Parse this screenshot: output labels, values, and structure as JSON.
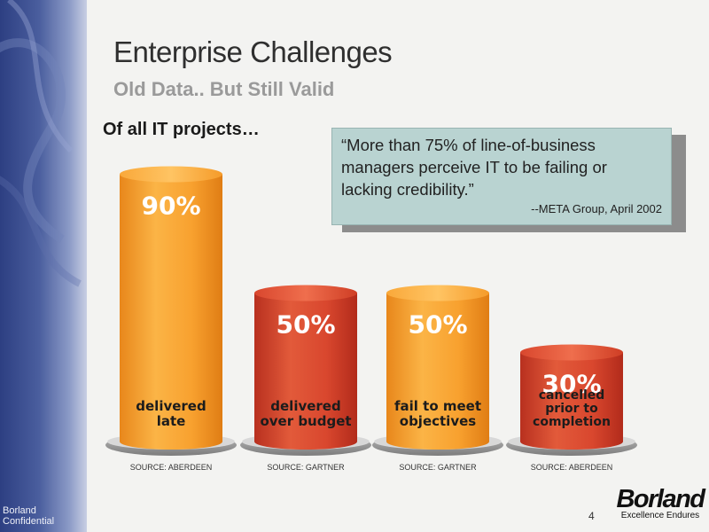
{
  "slide": {
    "title": "Enterprise Challenges",
    "subtitle": "Old Data.. But Still Valid",
    "lead": "Of all IT projects…",
    "confidential": "Borland Confidential",
    "page_number": "4"
  },
  "quote": {
    "text": "“More than 75% of line-of-business managers perceive IT to be failing or lacking credibility.”",
    "attribution": "--META Group, April 2002"
  },
  "logo": {
    "word": "Borland",
    "tagline": "Excellence Endures"
  },
  "colors": {
    "sidebar": "#2d3f82",
    "quote_box": "#b9d3d1",
    "orange_bar": "#f7a233",
    "red_bar": "#d6452c"
  },
  "chart_data": {
    "type": "bar",
    "categories": [
      [
        "delivered",
        "late"
      ],
      [
        "delivered",
        "over budget"
      ],
      [
        "fail to meet",
        "objectives"
      ],
      [
        "cancelled",
        "prior to",
        "completion"
      ]
    ],
    "values": [
      90,
      50,
      50,
      30
    ],
    "value_labels": [
      "90%",
      "50%",
      "50%",
      "30%"
    ],
    "sources": [
      "SOURCE: ABERDEEN",
      "SOURCE: GARTNER",
      "SOURCE: GARTNER",
      "SOURCE: ABERDEEN"
    ],
    "bar_colors": [
      "orange",
      "red",
      "orange",
      "red"
    ],
    "ylim": [
      0,
      100
    ]
  }
}
